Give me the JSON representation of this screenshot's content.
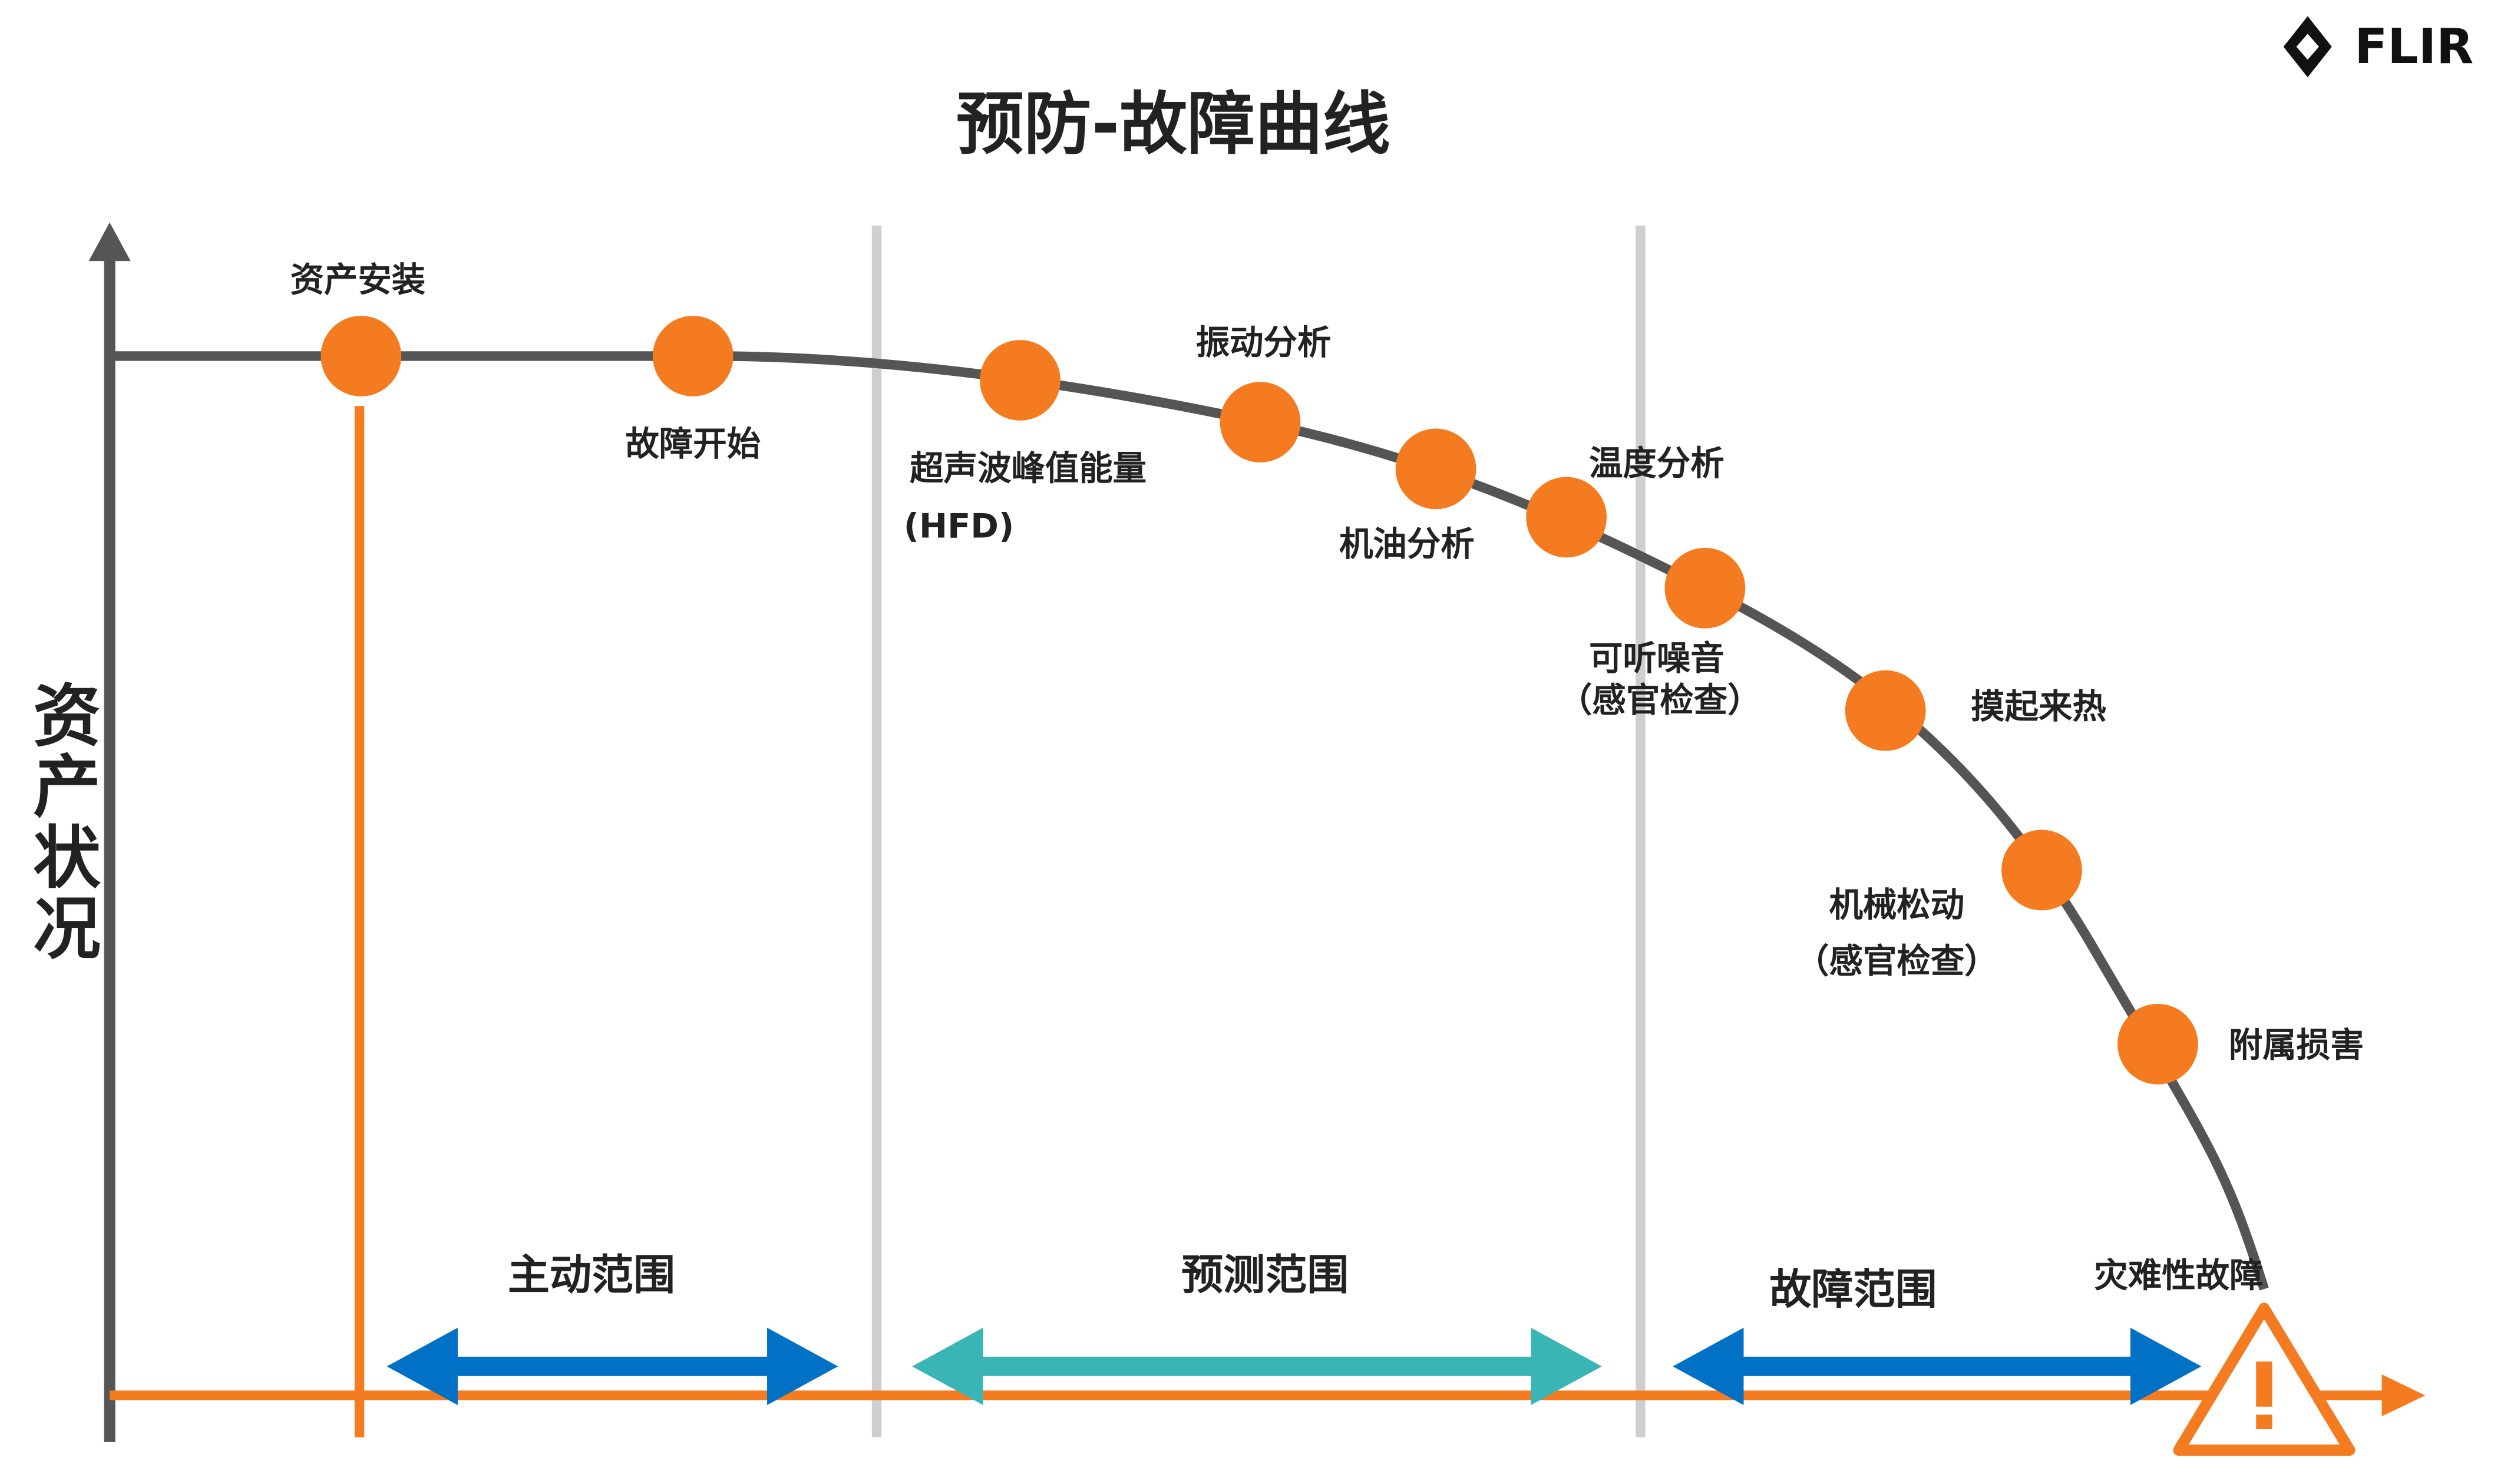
{
  "title": "预防-故障曲线",
  "logo": "FLIR",
  "y_axis_label": "资产状况",
  "nodes": [
    {
      "label": "资产安装"
    },
    {
      "label": "故障开始"
    },
    {
      "label": "超声波峰值能量",
      "note": "(HFD)"
    },
    {
      "label": "振动分析"
    },
    {
      "label": "机油分析"
    },
    {
      "label": "温度分析"
    },
    {
      "label": "可听噪音",
      "note": "（感官检查）"
    },
    {
      "label": "摸起来热"
    },
    {
      "label": "机械松动",
      "note": "（感官检查）"
    },
    {
      "label": "附属损害"
    }
  ],
  "ranges": [
    {
      "label": "主动范围"
    },
    {
      "label": "预测范围"
    },
    {
      "label": "故障范围"
    }
  ],
  "end_label": "灾难性故障"
}
